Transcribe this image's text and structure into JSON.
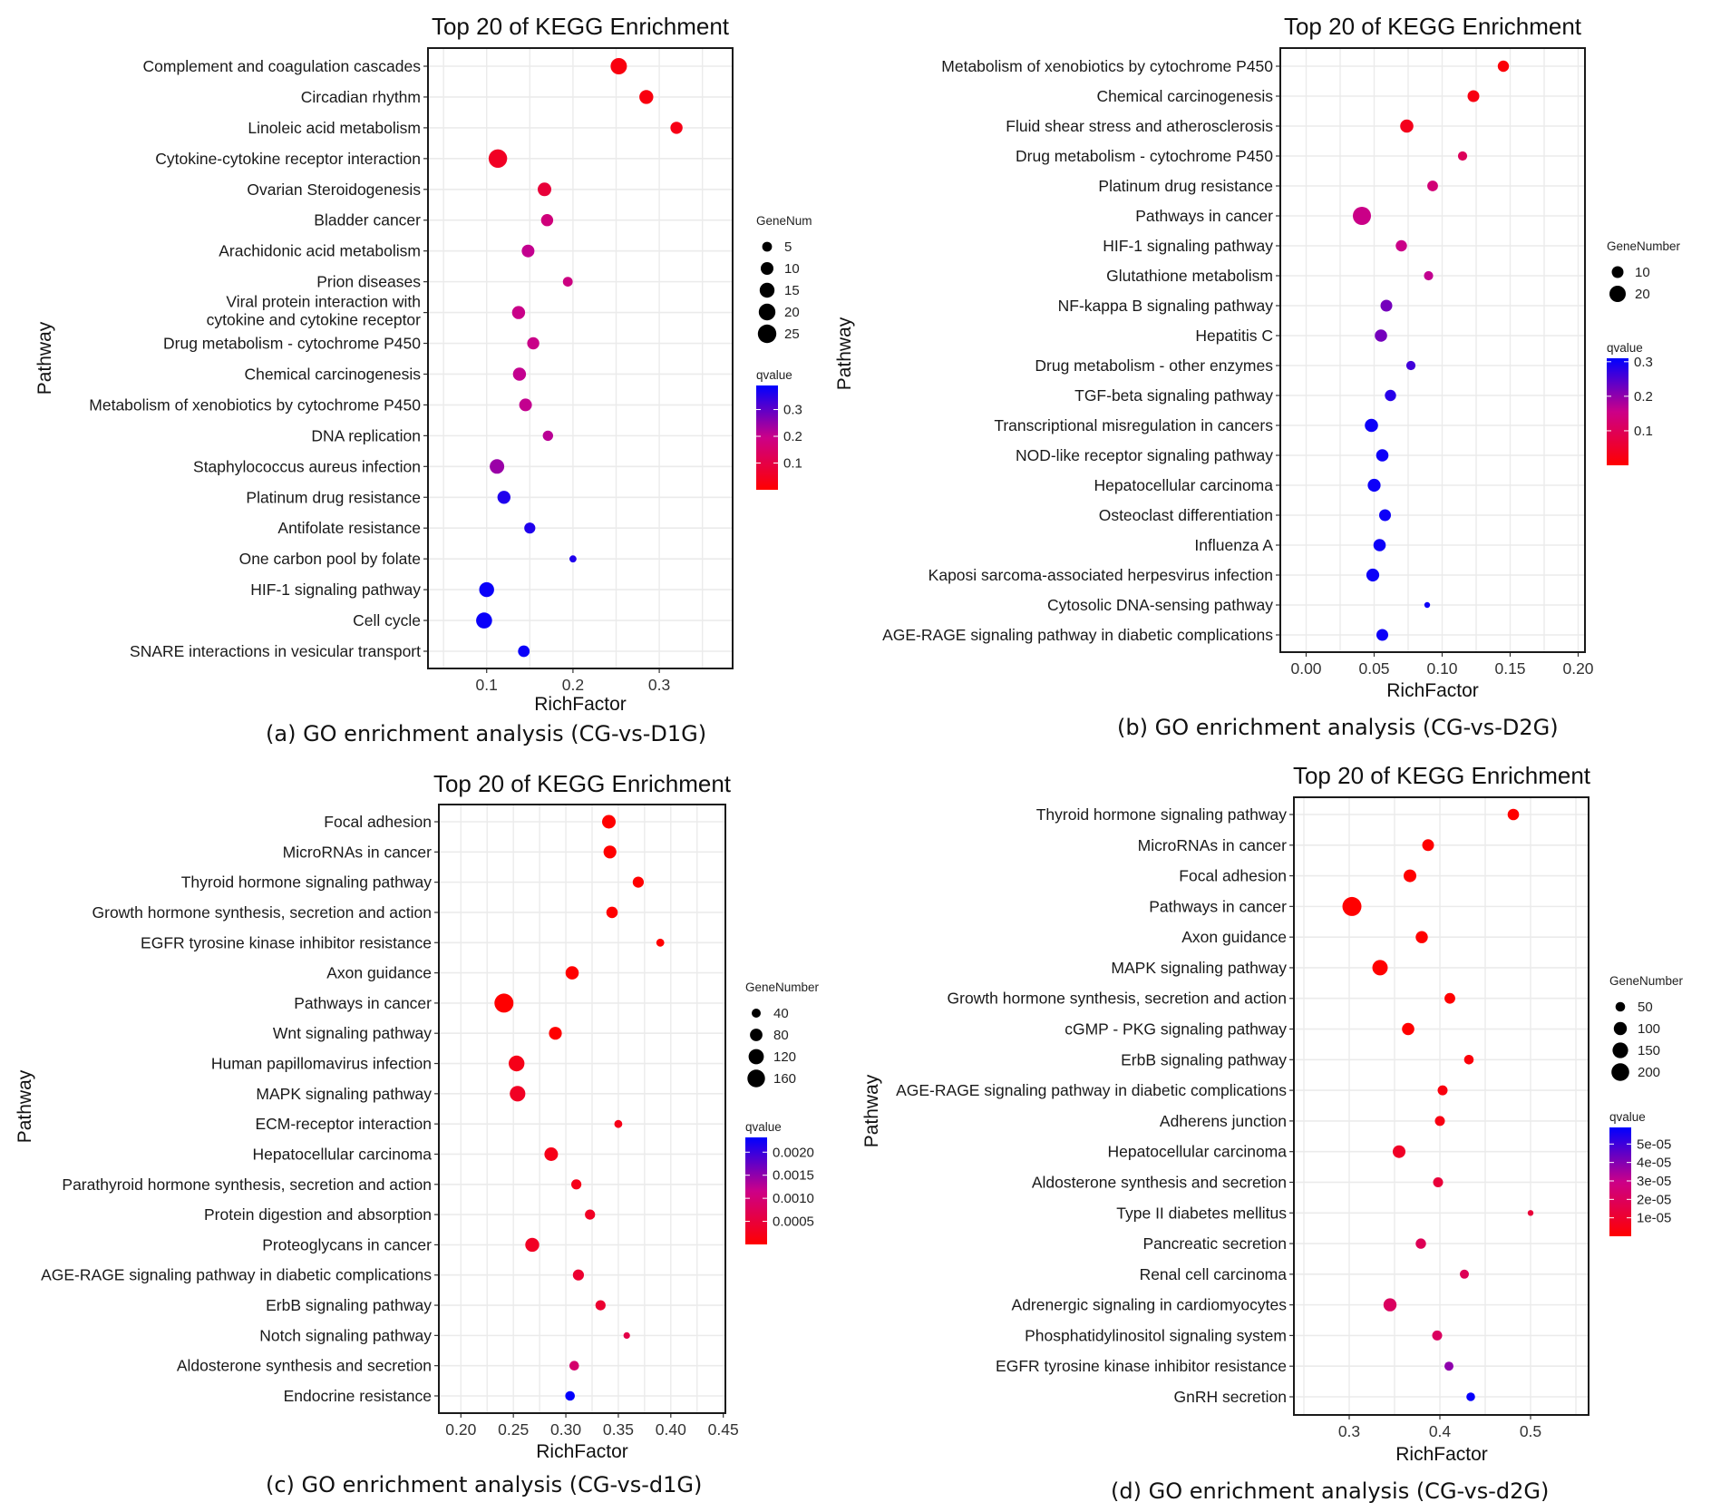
{
  "figure": {
    "captions": [
      "(a)  GO enrichment analysis (CG-vs-D1G)",
      "(b)  GO enrichment analysis (CG-vs-D2G)",
      "(c)  GO enrichment analysis (CG-vs-d1G)",
      "(d)  GO enrichment analysis (CG-vs-d2G)"
    ],
    "colors": {
      "low_q": "#ff0000",
      "high_q": "#0000ff",
      "grid": "#ebebeb",
      "border": "#1a1a1a"
    }
  },
  "chart_data": [
    {
      "panel": "a",
      "type": "scatter",
      "title": "Top 20 of KEGG Enrichment",
      "xlabel": "RichFactor",
      "ylabel": "Pathway",
      "xlim": [
        0.032,
        0.385
      ],
      "xticks": [
        0.1,
        0.2,
        0.3
      ],
      "xtick_labels": [
        "0.1",
        "0.2",
        "0.3"
      ],
      "grid": true,
      "size_legend": {
        "title": "GeneNum",
        "values": [
          5,
          10,
          15,
          20,
          25
        ],
        "range": [
          1,
          27
        ]
      },
      "color_legend": {
        "title": "qvalue",
        "ticks": [
          0.1,
          0.2,
          0.3
        ],
        "tick_labels": [
          "0.1",
          "0.2",
          "0.3"
        ],
        "range": [
          0.0,
          0.39
        ]
      },
      "categories": [
        "Complement and coagulation cascades",
        "Circadian rhythm",
        "Linoleic acid metabolism",
        "Cytokine-cytokine receptor interaction",
        "Ovarian Steroidogenesis",
        "Bladder cancer",
        "Arachidonic acid metabolism",
        "Prion diseases",
        "Viral protein interaction with\ncytokine and cytokine receptor",
        "Drug metabolism - cytochrome P450",
        "Chemical carcinogenesis",
        "Metabolism of xenobiotics by cytochrome P450",
        "DNA replication",
        "Staphylococcus aureus infection",
        "Platinum drug resistance",
        "Antifolate resistance",
        "One carbon pool by folate",
        "HIF-1 signaling pathway",
        "Cell cycle",
        "SNARE interactions in vesicular transport"
      ],
      "rich_factor": [
        0.253,
        0.285,
        0.32,
        0.113,
        0.167,
        0.17,
        0.148,
        0.194,
        0.137,
        0.154,
        0.138,
        0.145,
        0.171,
        0.112,
        0.12,
        0.15,
        0.2,
        0.1,
        0.097,
        0.143
      ],
      "gene_number": [
        19,
        13,
        9,
        25,
        12,
        9,
        10,
        5,
        11,
        9,
        11,
        10,
        6,
        14,
        11,
        7,
        2,
        15,
        18,
        8
      ],
      "qvalue": [
        0.02,
        0.02,
        0.03,
        0.05,
        0.08,
        0.17,
        0.2,
        0.18,
        0.19,
        0.19,
        0.2,
        0.2,
        0.21,
        0.24,
        0.36,
        0.36,
        0.36,
        0.38,
        0.38,
        0.38
      ]
    },
    {
      "panel": "b",
      "type": "scatter",
      "title": "Top 20 of KEGG Enrichment",
      "xlabel": "RichFactor",
      "ylabel": "Pathway",
      "xlim": [
        -0.019,
        0.205
      ],
      "xticks": [
        0.0,
        0.05,
        0.1,
        0.15,
        0.2
      ],
      "xtick_labels": [
        "0.00",
        "0.05",
        "0.10",
        "0.15",
        "0.20"
      ],
      "grid": true,
      "size_legend": {
        "title": "GeneNumber",
        "values": [
          10,
          20
        ],
        "range": [
          2,
          28
        ]
      },
      "color_legend": {
        "title": "qvalue",
        "ticks": [
          0.1,
          0.2,
          0.3
        ],
        "tick_labels": [
          "0.1",
          "0.2",
          "0.3"
        ],
        "range": [
          0.0,
          0.31
        ]
      },
      "categories": [
        "Metabolism of xenobiotics by cytochrome P450",
        "Chemical carcinogenesis",
        "Fluid shear stress and atherosclerosis",
        "Drug metabolism - cytochrome P450",
        "Platinum drug resistance",
        "Pathways in cancer",
        "HIF-1 signaling pathway",
        "Glutathione metabolism",
        "NF-kappa B signaling pathway",
        "Hepatitis C",
        "Drug metabolism - other enzymes",
        "TGF-beta signaling pathway",
        "Transcriptional misregulation in cancers",
        "NOD-like receptor signaling pathway",
        "Hepatocellular carcinoma",
        "Osteoclast differentiation",
        "Influenza A",
        "Kaposi sarcoma-associated herpesvirus infection",
        "Cytosolic DNA-sensing pathway",
        "AGE-RAGE signaling pathway in diabetic complications"
      ],
      "rich_factor": [
        0.145,
        0.123,
        0.074,
        0.115,
        0.093,
        0.041,
        0.07,
        0.09,
        0.059,
        0.055,
        0.077,
        0.062,
        0.048,
        0.056,
        0.05,
        0.058,
        0.054,
        0.049,
        0.089,
        0.056
      ],
      "gene_number": [
        9,
        10,
        13,
        6,
        8,
        25,
        9,
        6,
        10,
        11,
        6,
        9,
        13,
        11,
        12,
        10,
        11,
        12,
        2,
        10
      ],
      "qvalue": [
        0.01,
        0.02,
        0.03,
        0.1,
        0.13,
        0.15,
        0.15,
        0.16,
        0.22,
        0.22,
        0.26,
        0.28,
        0.3,
        0.3,
        0.3,
        0.3,
        0.3,
        0.3,
        0.3,
        0.3
      ]
    },
    {
      "panel": "c",
      "type": "scatter",
      "title": "Top 20 of KEGG Enrichment",
      "xlabel": "RichFactor",
      "ylabel": "Pathway",
      "xlim": [
        0.179,
        0.452
      ],
      "xticks": [
        0.2,
        0.25,
        0.3,
        0.35,
        0.4,
        0.45
      ],
      "xtick_labels": [
        "0.20",
        "0.25",
        "0.30",
        "0.35",
        "0.40",
        "0.45"
      ],
      "grid": true,
      "size_legend": {
        "title": "GeneNumber",
        "values": [
          40,
          80,
          120,
          160
        ],
        "range": [
          15,
          190
        ]
      },
      "color_legend": {
        "title": "qvalue",
        "ticks": [
          0.0005,
          0.001,
          0.0015,
          0.002
        ],
        "tick_labels": [
          "0.0005",
          "0.0010",
          "0.0015",
          "0.0020"
        ],
        "range": [
          0.0,
          0.00232
        ]
      },
      "categories": [
        "Focal adhesion",
        "MicroRNAs in cancer",
        "Thyroid hormone signaling pathway",
        "Growth hormone synthesis, secretion and action",
        "EGFR tyrosine kinase inhibitor resistance",
        "Axon guidance",
        "Pathways in cancer",
        "Wnt signaling pathway",
        "Human papillomavirus infection",
        "MAPK signaling pathway",
        "ECM-receptor interaction",
        "Hepatocellular carcinoma",
        "Parathyroid hormone synthesis, secretion and action",
        "Protein digestion and absorption",
        "Proteoglycans in cancer",
        "AGE-RAGE signaling pathway in diabetic complications",
        "ErbB signaling pathway",
        "Notch signaling pathway",
        "Aldosterone synthesis and secretion",
        "Endocrine resistance"
      ],
      "rich_factor": [
        0.341,
        0.342,
        0.369,
        0.344,
        0.39,
        0.306,
        0.241,
        0.29,
        0.253,
        0.254,
        0.35,
        0.286,
        0.31,
        0.323,
        0.268,
        0.312,
        0.333,
        0.358,
        0.308,
        0.304
      ],
      "gene_number": [
        95,
        85,
        60,
        65,
        30,
        90,
        190,
        85,
        130,
        125,
        30,
        95,
        50,
        50,
        100,
        60,
        50,
        20,
        45,
        45
      ],
      "qvalue": [
        0.0,
        0.0,
        0.0,
        0.0,
        0.0,
        0.0,
        0.0,
        0.0,
        0.0002,
        0.0003,
        0.0002,
        0.0002,
        0.0002,
        0.0003,
        0.0003,
        0.0004,
        0.0004,
        0.0006,
        0.0009,
        0.0023
      ]
    },
    {
      "panel": "d",
      "type": "scatter",
      "title": "Top 20 of KEGG Enrichment",
      "xlabel": "RichFactor",
      "ylabel": "Pathway",
      "xlim": [
        0.239,
        0.564
      ],
      "xticks": [
        0.3,
        0.4,
        0.5
      ],
      "xtick_labels": [
        "0.3",
        "0.4",
        "0.5"
      ],
      "grid": true,
      "size_legend": {
        "title": "GeneNumber",
        "values": [
          50,
          100,
          150,
          200
        ],
        "range": [
          15,
          230
        ]
      },
      "color_legend": {
        "title": "qvalue",
        "ticks": [
          1e-05,
          2e-05,
          3e-05,
          4e-05,
          5e-05
        ],
        "tick_labels": [
          "1e-05",
          "2e-05",
          "3e-05",
          "4e-05",
          "5e-05"
        ],
        "range": [
          0.0,
          5.9e-05
        ]
      },
      "categories": [
        "Thyroid hormone signaling pathway",
        "MicroRNAs in cancer",
        "Focal adhesion",
        "Pathways in cancer",
        "Axon guidance",
        "MAPK signaling pathway",
        "Growth hormone synthesis, secretion and action",
        "cGMP - PKG signaling pathway",
        "ErbB signaling pathway",
        "AGE-RAGE signaling pathway in diabetic complications",
        "Adherens junction",
        "Hepatocellular carcinoma",
        "Aldosterone synthesis and secretion",
        "Type II diabetes mellitus",
        "Pancreatic secretion",
        "Renal cell carcinoma",
        "Adrenergic signaling in cardiomyocytes",
        "Phosphatidylinositol signaling system",
        "EGFR tyrosine kinase inhibitor resistance",
        "GnRH secretion"
      ],
      "rich_factor": [
        0.481,
        0.387,
        0.367,
        0.303,
        0.38,
        0.334,
        0.411,
        0.365,
        0.432,
        0.403,
        0.4,
        0.355,
        0.398,
        0.5,
        0.379,
        0.427,
        0.345,
        0.397,
        0.41,
        0.434
      ],
      "gene_number": [
        75,
        80,
        95,
        230,
        85,
        145,
        65,
        90,
        50,
        55,
        55,
        95,
        55,
        15,
        60,
        45,
        100,
        55,
        45,
        40
      ],
      "qvalue": [
        0.0,
        0.0,
        0.0,
        0.0,
        0.0,
        0.0,
        0.0,
        0.0,
        2e-06,
        3e-06,
        4e-06,
        8e-06,
        1.2e-05,
        1.2e-05,
        1.8e-05,
        1.8e-05,
        2e-05,
        2e-05,
        3.8e-05,
        5.8e-05
      ]
    }
  ]
}
